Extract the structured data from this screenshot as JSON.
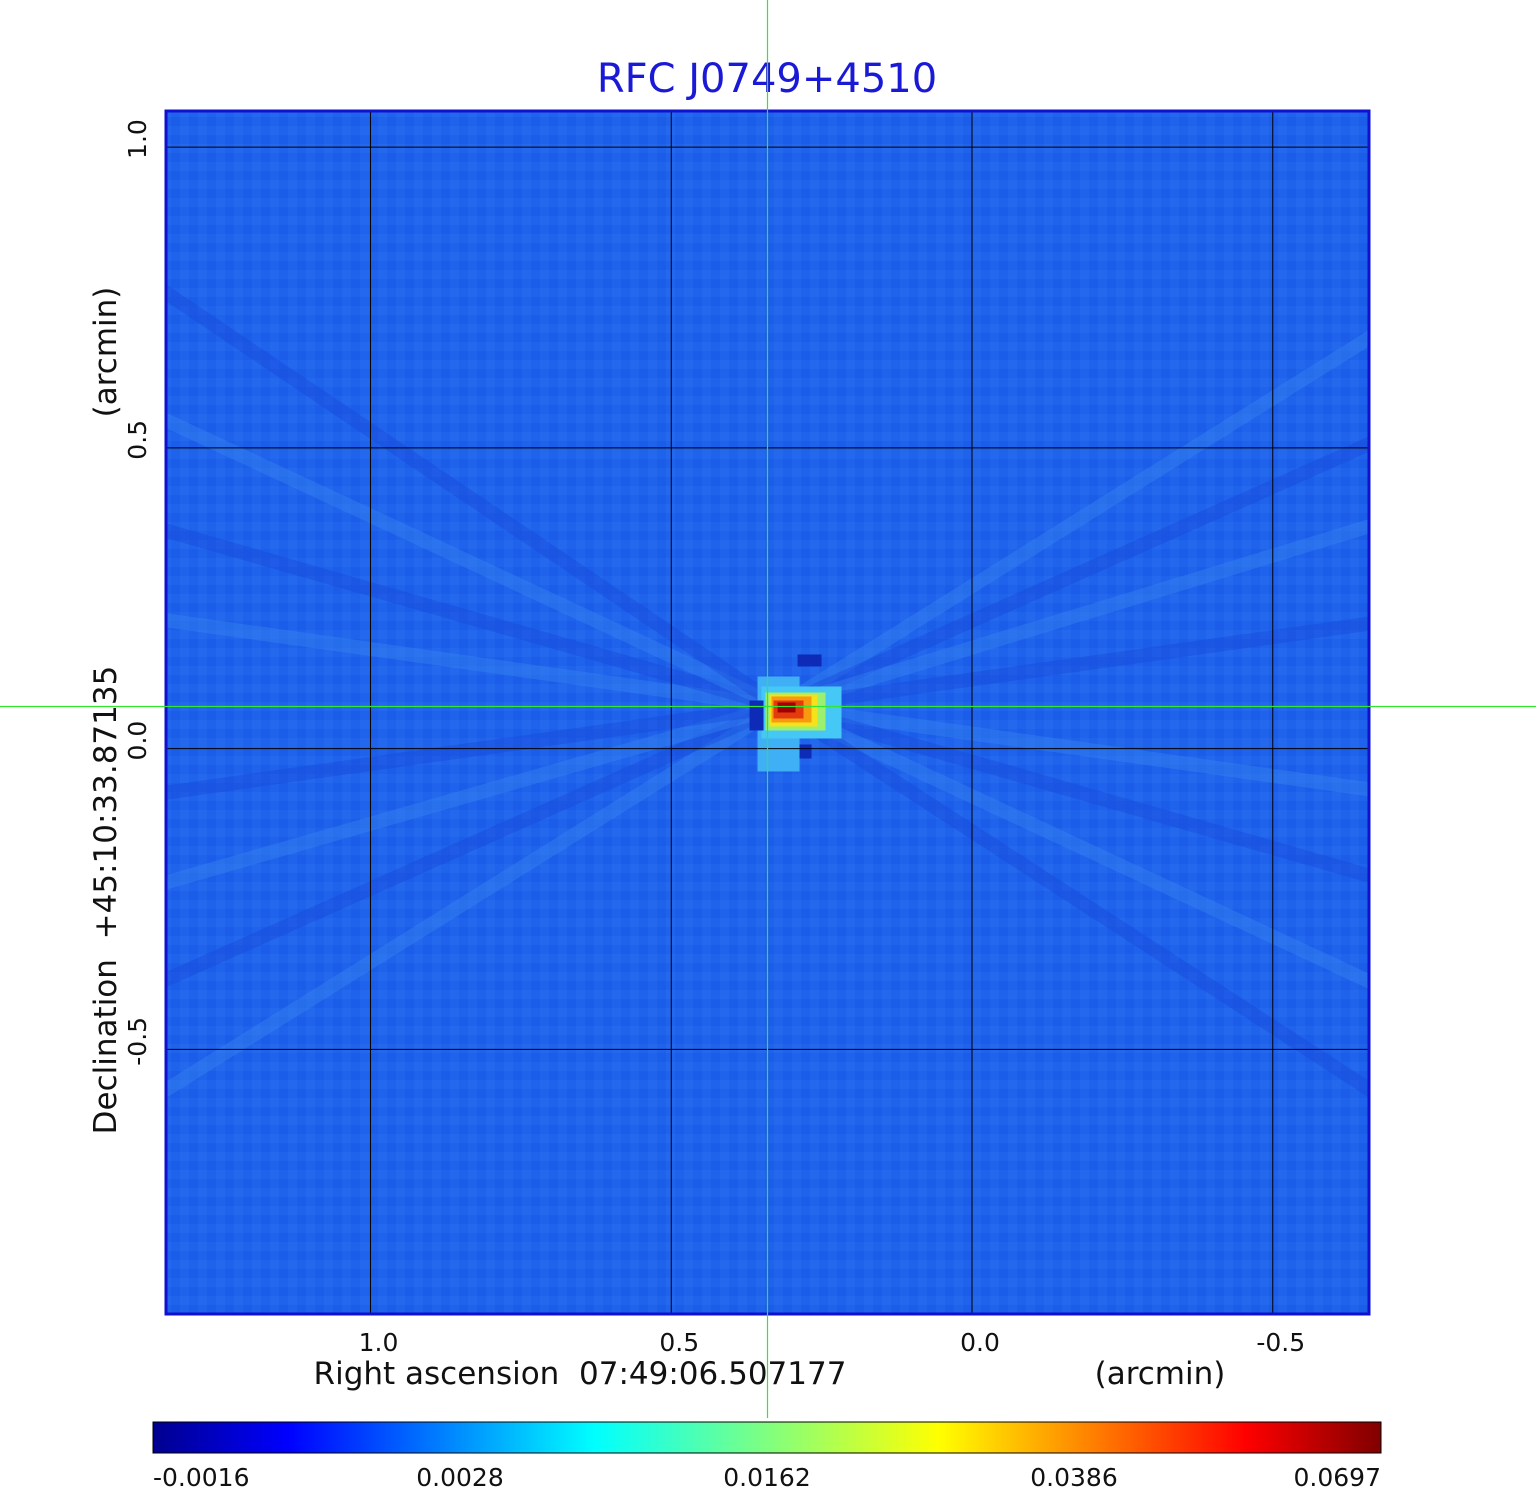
{
  "chart_data": {
    "type": "heatmap",
    "title": "RFC J0749+4510",
    "xlabel": "Right ascension  07:49:06.507177",
    "x_unit": "(arcmin)",
    "ylabel": "Declination  +45:10:33.87135",
    "y_unit": "(arcmin)",
    "x_ticks": [
      "1.0",
      "0.5",
      "0.0",
      "-0.5"
    ],
    "y_ticks": [
      "1.0",
      "0.5",
      "0.0",
      "-0.5"
    ],
    "xlim": [
      1.34,
      -0.66
    ],
    "ylim": [
      -0.94,
      1.06
    ],
    "grid": true,
    "colormap": "jet",
    "colorbar_ticks": [
      "-0.0016",
      "0.0028",
      "0.0162",
      "0.0386",
      "0.0697"
    ],
    "peak_value": 0.0697,
    "peak_position": [
      0.32,
      0.07
    ],
    "crosshair": [
      0.34,
      0.07
    ],
    "colors": {
      "title": "#1a1ad6",
      "frame": "#1010d0",
      "background_field": "#1f62ec",
      "grid": "#000000",
      "crosshair": "#32e632"
    }
  }
}
